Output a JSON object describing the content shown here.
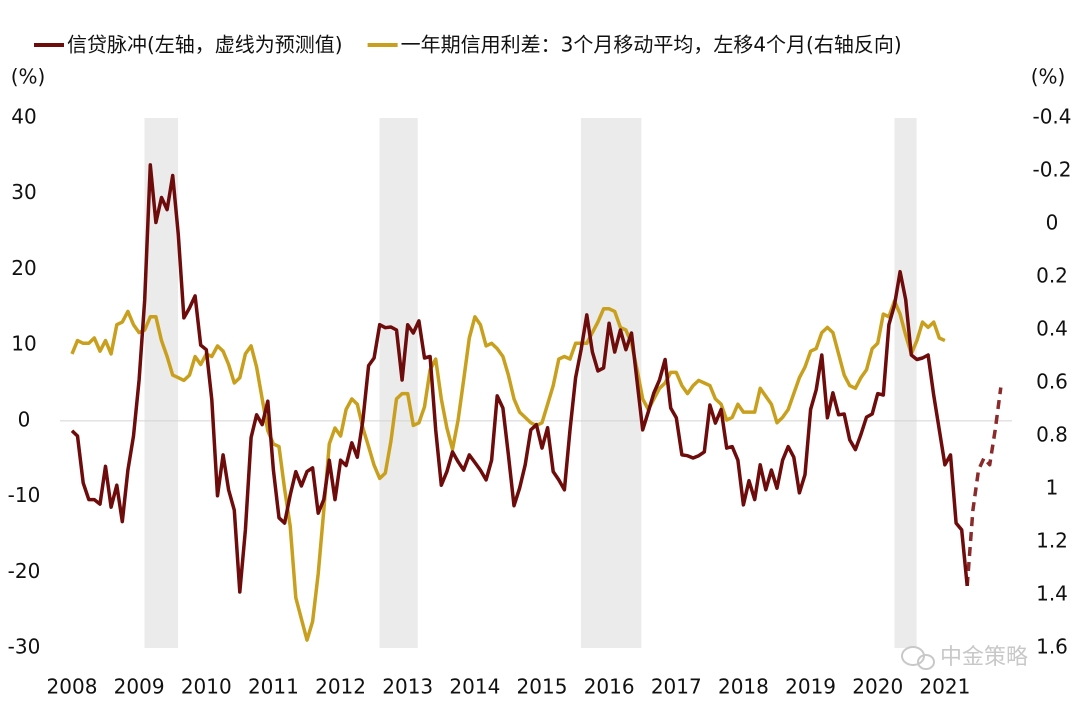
{
  "chart_data": {
    "type": "line",
    "y_label": "(%)",
    "y2_label": "(%)",
    "watermark": "中金策略",
    "xlim": [
      2007.5,
      2022.5
    ],
    "xticks": [
      2008,
      2009,
      2010,
      2011,
      2012,
      2013,
      2014,
      2015,
      2016,
      2017,
      2018,
      2019,
      2020,
      2021
    ],
    "ylim": [
      -30,
      40
    ],
    "yticks": [
      40,
      30,
      20,
      10,
      0,
      -10,
      -20,
      -30
    ],
    "y2lim": [
      -0.4,
      1.6
    ],
    "y2_reversed": true,
    "y2ticks": [
      -0.4,
      -0.2,
      0,
      0.2,
      0.4,
      0.6,
      0.8,
      1,
      1.2,
      1.4,
      1.6
    ],
    "zero_line": true,
    "shaded_periods": [
      [
        2009.08,
        2009.58
      ],
      [
        2012.58,
        2013.15
      ],
      [
        2015.58,
        2016.48
      ],
      [
        2020.25,
        2020.58
      ]
    ],
    "shade_color": "#ebebeb",
    "x": [
      2008.0,
      2008.083,
      2008.167,
      2008.25,
      2008.333,
      2008.417,
      2008.5,
      2008.583,
      2008.667,
      2008.75,
      2008.833,
      2008.917,
      2009.0,
      2009.083,
      2009.167,
      2009.25,
      2009.333,
      2009.417,
      2009.5,
      2009.583,
      2009.667,
      2009.75,
      2009.833,
      2009.917,
      2010.0,
      2010.083,
      2010.167,
      2010.25,
      2010.333,
      2010.417,
      2010.5,
      2010.583,
      2010.667,
      2010.75,
      2010.833,
      2010.917,
      2011.0,
      2011.083,
      2011.167,
      2011.25,
      2011.333,
      2011.417,
      2011.5,
      2011.583,
      2011.667,
      2011.75,
      2011.833,
      2011.917,
      2012.0,
      2012.083,
      2012.167,
      2012.25,
      2012.333,
      2012.417,
      2012.5,
      2012.583,
      2012.667,
      2012.75,
      2012.833,
      2012.917,
      2013.0,
      2013.083,
      2013.167,
      2013.25,
      2013.333,
      2013.417,
      2013.5,
      2013.583,
      2013.667,
      2013.75,
      2013.833,
      2013.917,
      2014.0,
      2014.083,
      2014.167,
      2014.25,
      2014.333,
      2014.417,
      2014.5,
      2014.583,
      2014.667,
      2014.75,
      2014.833,
      2014.917,
      2015.0,
      2015.083,
      2015.167,
      2015.25,
      2015.333,
      2015.417,
      2015.5,
      2015.583,
      2015.667,
      2015.75,
      2015.833,
      2015.917,
      2016.0,
      2016.083,
      2016.167,
      2016.25,
      2016.333,
      2016.417,
      2016.5,
      2016.583,
      2016.667,
      2016.75,
      2016.833,
      2016.917,
      2017.0,
      2017.083,
      2017.167,
      2017.25,
      2017.333,
      2017.417,
      2017.5,
      2017.583,
      2017.667,
      2017.75,
      2017.833,
      2017.917,
      2018.0,
      2018.083,
      2018.167,
      2018.25,
      2018.333,
      2018.417,
      2018.5,
      2018.583,
      2018.667,
      2018.75,
      2018.833,
      2018.917,
      2019.0,
      2019.083,
      2019.167,
      2019.25,
      2019.333,
      2019.417,
      2019.5,
      2019.583,
      2019.667,
      2019.75,
      2019.833,
      2019.917,
      2020.0,
      2020.083,
      2020.167,
      2020.25,
      2020.333,
      2020.417,
      2020.5,
      2020.583,
      2020.667,
      2020.75,
      2020.833,
      2020.917,
      2021.0,
      2021.083,
      2021.167,
      2021.25,
      2021.333,
      2021.417,
      2021.5,
      2021.583,
      2021.667,
      2021.75,
      2021.833
    ],
    "series": [
      {
        "name": "信贷脉冲(左轴，虚线为预测值)",
        "color": "#6e0b0b",
        "values": [
          -1.3,
          -2,
          -8.2,
          -10.4,
          -10.4,
          -11,
          -6,
          -11.4,
          -8.5,
          -13.3,
          -6.5,
          -2,
          5.4,
          16,
          33.8,
          26.2,
          29.5,
          27.9,
          32.4,
          24.6,
          13.6,
          14.9,
          16.5,
          10,
          9.4,
          2.8,
          -9.9,
          -4.5,
          -9.1,
          -11.8,
          -22.6,
          -14.4,
          -2.2,
          0.8,
          -0.5,
          2.6,
          -6.5,
          -12.8,
          -13.5,
          -9.8,
          -6.7,
          -8.6,
          -6.7,
          -6.2,
          -12.2,
          -10.4,
          -5.2,
          -10.4,
          -5.2,
          -5.9,
          -2.9,
          -4.8,
          0.1,
          7.3,
          8.3,
          12.7,
          12.3,
          12.4,
          12,
          5.4,
          12.7,
          11.6,
          13.2,
          8.3,
          8.5,
          -1.2,
          -8.5,
          -6.7,
          -4.1,
          -5.4,
          -6.5,
          -4.5,
          -5.5,
          -6.5,
          -7.8,
          -5.2,
          3.3,
          1.7,
          -4.5,
          -11.2,
          -8.9,
          -5.8,
          -1.2,
          -0.5,
          -3.6,
          -0.9,
          -6.7,
          -7.8,
          -9.1,
          -1.2,
          5.7,
          9.4,
          14,
          9.1,
          6.6,
          7,
          12.9,
          9.1,
          12,
          9.4,
          11.6,
          5.2,
          -1.2,
          1.2,
          3.7,
          5.4,
          8.1,
          1.7,
          0.4,
          -4.5,
          -4.6,
          -4.9,
          -4.6,
          -4.1,
          2.1,
          -0.3,
          1.5,
          -3.6,
          -3.4,
          -5.2,
          -11.1,
          -7.9,
          -10.4,
          -5.8,
          -9.1,
          -6.5,
          -8.9,
          -5.2,
          -3.4,
          -4.8,
          -9.5,
          -7.1,
          1.5,
          4.1,
          8.7,
          0.4,
          3.7,
          0.8,
          0.9,
          -2.5,
          -3.8,
          -1.8,
          0.5,
          0.9,
          3.6,
          3.4,
          12.7,
          15.3,
          19.7,
          16,
          8.7,
          8.1,
          8.3,
          8.7,
          3.4,
          -1.2,
          -5.8,
          -4.5,
          -13.5,
          -14.4,
          -21.8,
          null,
          null,
          null,
          null,
          null,
          null
        ]
      },
      {
        "color": "#8b2a2a",
        "line_style": "dashed",
        "values": [
          null,
          null,
          null,
          null,
          null,
          null,
          null,
          null,
          null,
          null,
          null,
          null,
          null,
          null,
          null,
          null,
          null,
          null,
          null,
          null,
          null,
          null,
          null,
          null,
          null,
          null,
          null,
          null,
          null,
          null,
          null,
          null,
          null,
          null,
          null,
          null,
          null,
          null,
          null,
          null,
          null,
          null,
          null,
          null,
          null,
          null,
          null,
          null,
          null,
          null,
          null,
          null,
          null,
          null,
          null,
          null,
          null,
          null,
          null,
          null,
          null,
          null,
          null,
          null,
          null,
          null,
          null,
          null,
          null,
          null,
          null,
          null,
          null,
          null,
          null,
          null,
          null,
          null,
          null,
          null,
          null,
          null,
          null,
          null,
          null,
          null,
          null,
          null,
          null,
          null,
          null,
          null,
          null,
          null,
          null,
          null,
          null,
          null,
          null,
          null,
          null,
          null,
          null,
          null,
          null,
          null,
          null,
          null,
          null,
          null,
          null,
          null,
          null,
          null,
          null,
          null,
          null,
          null,
          null,
          null,
          null,
          null,
          null,
          null,
          null,
          null,
          null,
          null,
          null,
          null,
          null,
          null,
          null,
          null,
          null,
          null,
          null,
          null,
          null,
          null,
          null,
          null,
          null,
          null,
          null,
          null,
          null,
          null,
          null,
          null,
          null,
          null,
          null,
          null,
          null,
          null,
          null,
          null,
          null,
          null,
          -21.8,
          -11.8,
          -6.5,
          -4.9,
          -5.8,
          -1.2,
          4.4
        ]
      },
      {
        "name": "一年期信用利差：3个月移动平均，左移4个月(右轴反向)",
        "color": "#c9a01d",
        "axis": "y2",
        "values": [
          0.49,
          0.44,
          0.45,
          0.45,
          0.43,
          0.48,
          0.44,
          0.49,
          0.38,
          0.37,
          0.33,
          0.38,
          0.41,
          0.4,
          0.35,
          0.35,
          0.44,
          0.5,
          0.57,
          0.58,
          0.59,
          0.57,
          0.5,
          0.53,
          0.49,
          0.5,
          0.46,
          0.48,
          0.53,
          0.6,
          0.58,
          0.49,
          0.46,
          0.54,
          0.66,
          0.78,
          0.83,
          0.84,
          1.0,
          1.14,
          1.41,
          1.49,
          1.57,
          1.5,
          1.32,
          1.08,
          0.83,
          0.77,
          0.8,
          0.7,
          0.66,
          0.68,
          0.77,
          0.84,
          0.91,
          0.96,
          0.94,
          0.82,
          0.66,
          0.64,
          0.64,
          0.76,
          0.75,
          0.69,
          0.55,
          0.51,
          0.66,
          0.77,
          0.85,
          0.74,
          0.59,
          0.43,
          0.35,
          0.38,
          0.46,
          0.45,
          0.47,
          0.5,
          0.57,
          0.66,
          0.71,
          0.73,
          0.75,
          0.76,
          0.75,
          0.68,
          0.61,
          0.51,
          0.5,
          0.51,
          0.45,
          0.45,
          0.45,
          0.41,
          0.37,
          0.32,
          0.32,
          0.33,
          0.39,
          0.4,
          0.45,
          0.55,
          0.66,
          0.7,
          0.66,
          0.62,
          0.6,
          0.56,
          0.56,
          0.61,
          0.64,
          0.61,
          0.59,
          0.6,
          0.61,
          0.66,
          0.68,
          0.74,
          0.73,
          0.68,
          0.71,
          0.71,
          0.71,
          0.62,
          0.65,
          0.68,
          0.75,
          0.73,
          0.7,
          0.64,
          0.58,
          0.54,
          0.48,
          0.47,
          0.41,
          0.39,
          0.41,
          0.49,
          0.57,
          0.61,
          0.62,
          0.58,
          0.55,
          0.47,
          0.45,
          0.34,
          0.35,
          0.29,
          0.34,
          0.42,
          0.49,
          0.44,
          0.37,
          0.39,
          0.37,
          0.43,
          0.44,
          null,
          null,
          null,
          null,
          null,
          null,
          null,
          null,
          null,
          null
        ]
      }
    ]
  }
}
